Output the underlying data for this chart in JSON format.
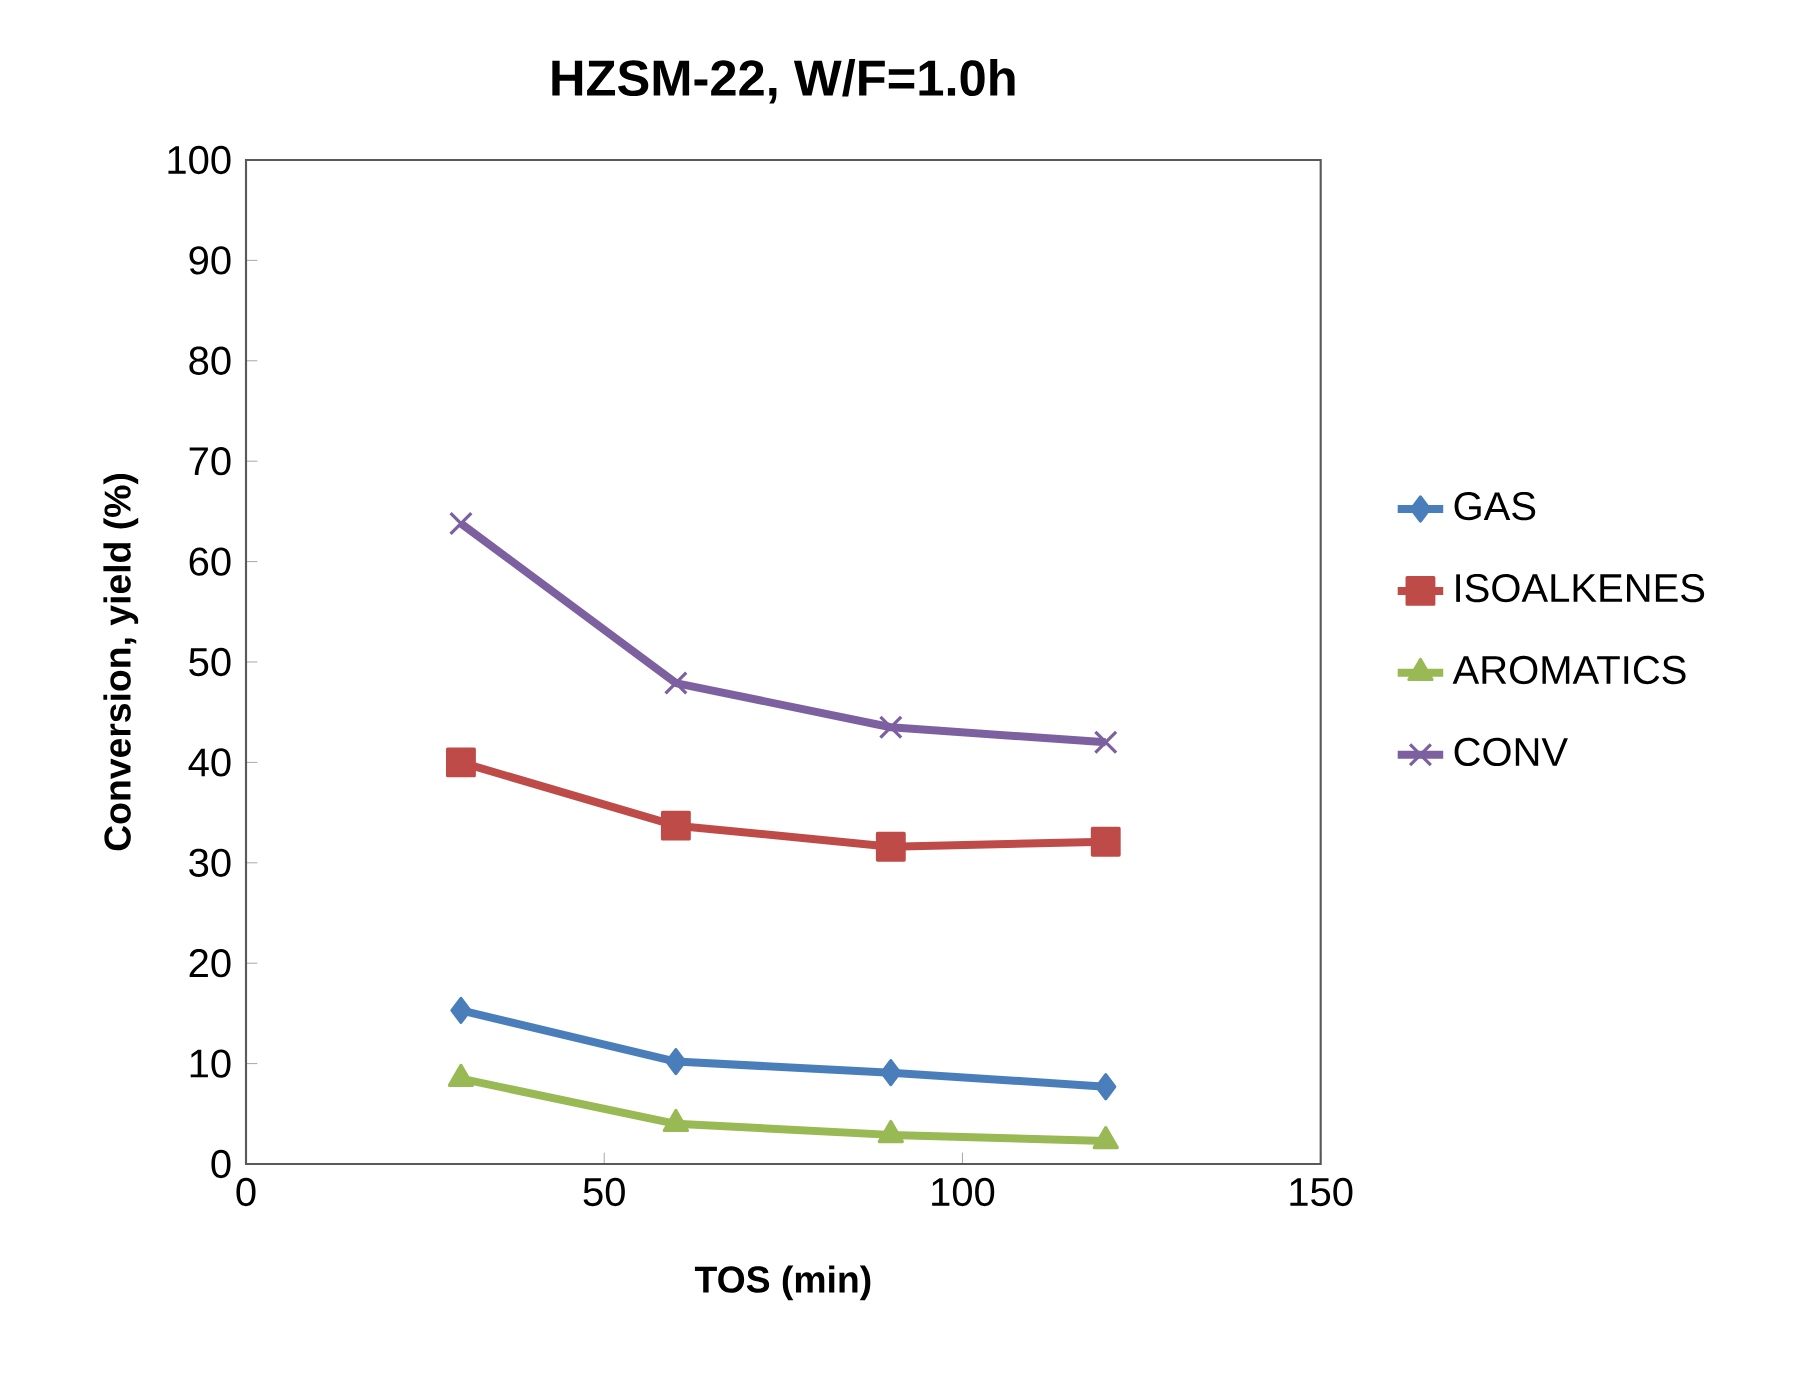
{
  "chart_data": {
    "type": "line",
    "title": "HZSM-22, W/F=1.0h",
    "xlabel": "TOS (min)",
    "ylabel": "Conversion, yield (%)",
    "x": [
      30,
      60,
      90,
      120
    ],
    "series": [
      {
        "name": "GAS",
        "color": "#4a7ebb",
        "marker": "diamond",
        "values": [
          15.3,
          10.2,
          9.1,
          7.7
        ]
      },
      {
        "name": "ISOALKENES",
        "color": "#be4b48",
        "marker": "square",
        "values": [
          40.0,
          33.7,
          31.6,
          32.1
        ]
      },
      {
        "name": "AROMATICS",
        "color": "#98b954",
        "marker": "triangle",
        "values": [
          8.5,
          4.0,
          2.9,
          2.3
        ]
      },
      {
        "name": "CONV",
        "color": "#7d60a0",
        "marker": "cross",
        "values": [
          63.8,
          47.9,
          43.5,
          42.0
        ]
      }
    ],
    "xlim": [
      0,
      150
    ],
    "xticks": [
      0,
      50,
      100,
      150
    ],
    "ylim": [
      0,
      100
    ],
    "yticks": [
      0,
      10,
      20,
      30,
      40,
      50,
      60,
      70,
      80,
      90,
      100
    ],
    "grid": false,
    "legend": "right",
    "line_style": "solid"
  }
}
